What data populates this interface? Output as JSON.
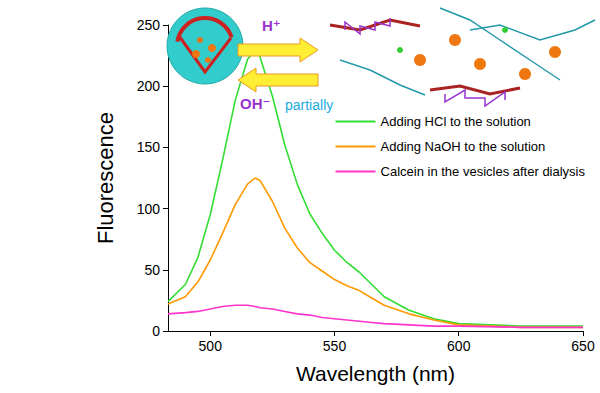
{
  "chart_data": {
    "type": "line",
    "x_label": "Wavelength (nm)",
    "y_label": "Fluorescence",
    "x": [
      483,
      490,
      495,
      500,
      505,
      510,
      515,
      518,
      520,
      525,
      530,
      535,
      540,
      545,
      550,
      555,
      560,
      565,
      570,
      580,
      590,
      600,
      625,
      650
    ],
    "xlim": [
      483,
      650
    ],
    "xticks": [
      500,
      550,
      600,
      650
    ],
    "ylim": [
      0,
      250
    ],
    "yticks": [
      0,
      50,
      100,
      150,
      200,
      250
    ],
    "grid": false,
    "legend": "right",
    "series": [
      {
        "name": "Adding HCl to the solution",
        "color": "#33dd33",
        "values": [
          24,
          38,
          60,
          95,
          140,
          188,
          222,
          229,
          224,
          192,
          152,
          120,
          96,
          80,
          66,
          56,
          48,
          38,
          28,
          17,
          10,
          6,
          4,
          4
        ]
      },
      {
        "name": "Adding NaOH to the solution",
        "color": "#ff9900",
        "values": [
          22,
          28,
          40,
          58,
          80,
          103,
          120,
          125,
          123,
          106,
          84,
          68,
          56,
          49,
          42,
          37,
          33,
          27,
          21,
          14,
          9,
          5,
          3,
          3
        ]
      },
      {
        "name": "Calcein in the vesicles after dialysis",
        "color": "#ff33cc",
        "values": [
          14,
          15,
          16,
          18,
          20,
          21,
          21,
          20,
          19,
          18,
          16,
          14,
          13,
          11,
          10,
          9,
          8,
          7,
          6,
          5,
          4,
          4,
          3,
          3
        ]
      }
    ],
    "annotations": [
      "H⁺",
      "OH⁻",
      "partially"
    ]
  }
}
